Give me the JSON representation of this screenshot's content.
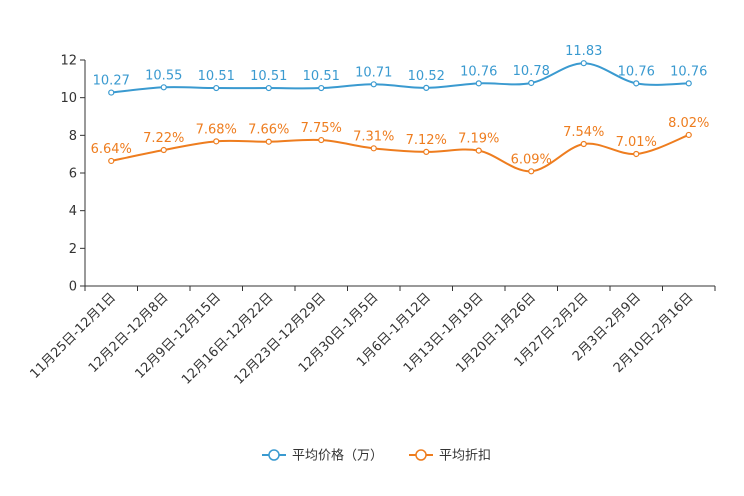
{
  "chart_data": {
    "type": "line",
    "title": "",
    "xlabel": "",
    "ylabel": "",
    "ylim": [
      0,
      12
    ],
    "yticks": [
      0,
      2,
      4,
      6,
      8,
      10,
      12
    ],
    "grid": false,
    "legend_position": "bottom",
    "categories": [
      "11月25日-12月1日",
      "12月2日-12月8日",
      "12月9日-12月15日",
      "12月16日-12月22日",
      "12月23日-12月29日",
      "12月30日-1月5日",
      "1月6日-1月12日",
      "1月13日-1月19日",
      "1月20日-1月26日",
      "1月27日-2月2日",
      "2月3日-2月9日",
      "2月10日-2月16日"
    ],
    "series": [
      {
        "name": "平均价格（万）",
        "color": "#3a9ad0",
        "values": [
          10.27,
          10.55,
          10.51,
          10.51,
          10.51,
          10.71,
          10.52,
          10.76,
          10.78,
          11.83,
          10.76,
          10.76
        ],
        "labels": [
          "10.27",
          "10.55",
          "10.51",
          "10.51",
          "10.51",
          "10.71",
          "10.52",
          "10.76",
          "10.78",
          "11.83",
          "10.76",
          "10.76"
        ]
      },
      {
        "name": "平均折扣",
        "color": "#ee7d1f",
        "values": [
          6.64,
          7.22,
          7.68,
          7.66,
          7.75,
          7.31,
          7.12,
          7.19,
          6.09,
          7.54,
          7.01,
          8.02
        ],
        "labels": [
          "6.64%",
          "7.22%",
          "7.68%",
          "7.66%",
          "7.75%",
          "7.31%",
          "7.12%",
          "7.19%",
          "6.09%",
          "7.54%",
          "7.01%",
          "8.02%"
        ]
      }
    ]
  }
}
